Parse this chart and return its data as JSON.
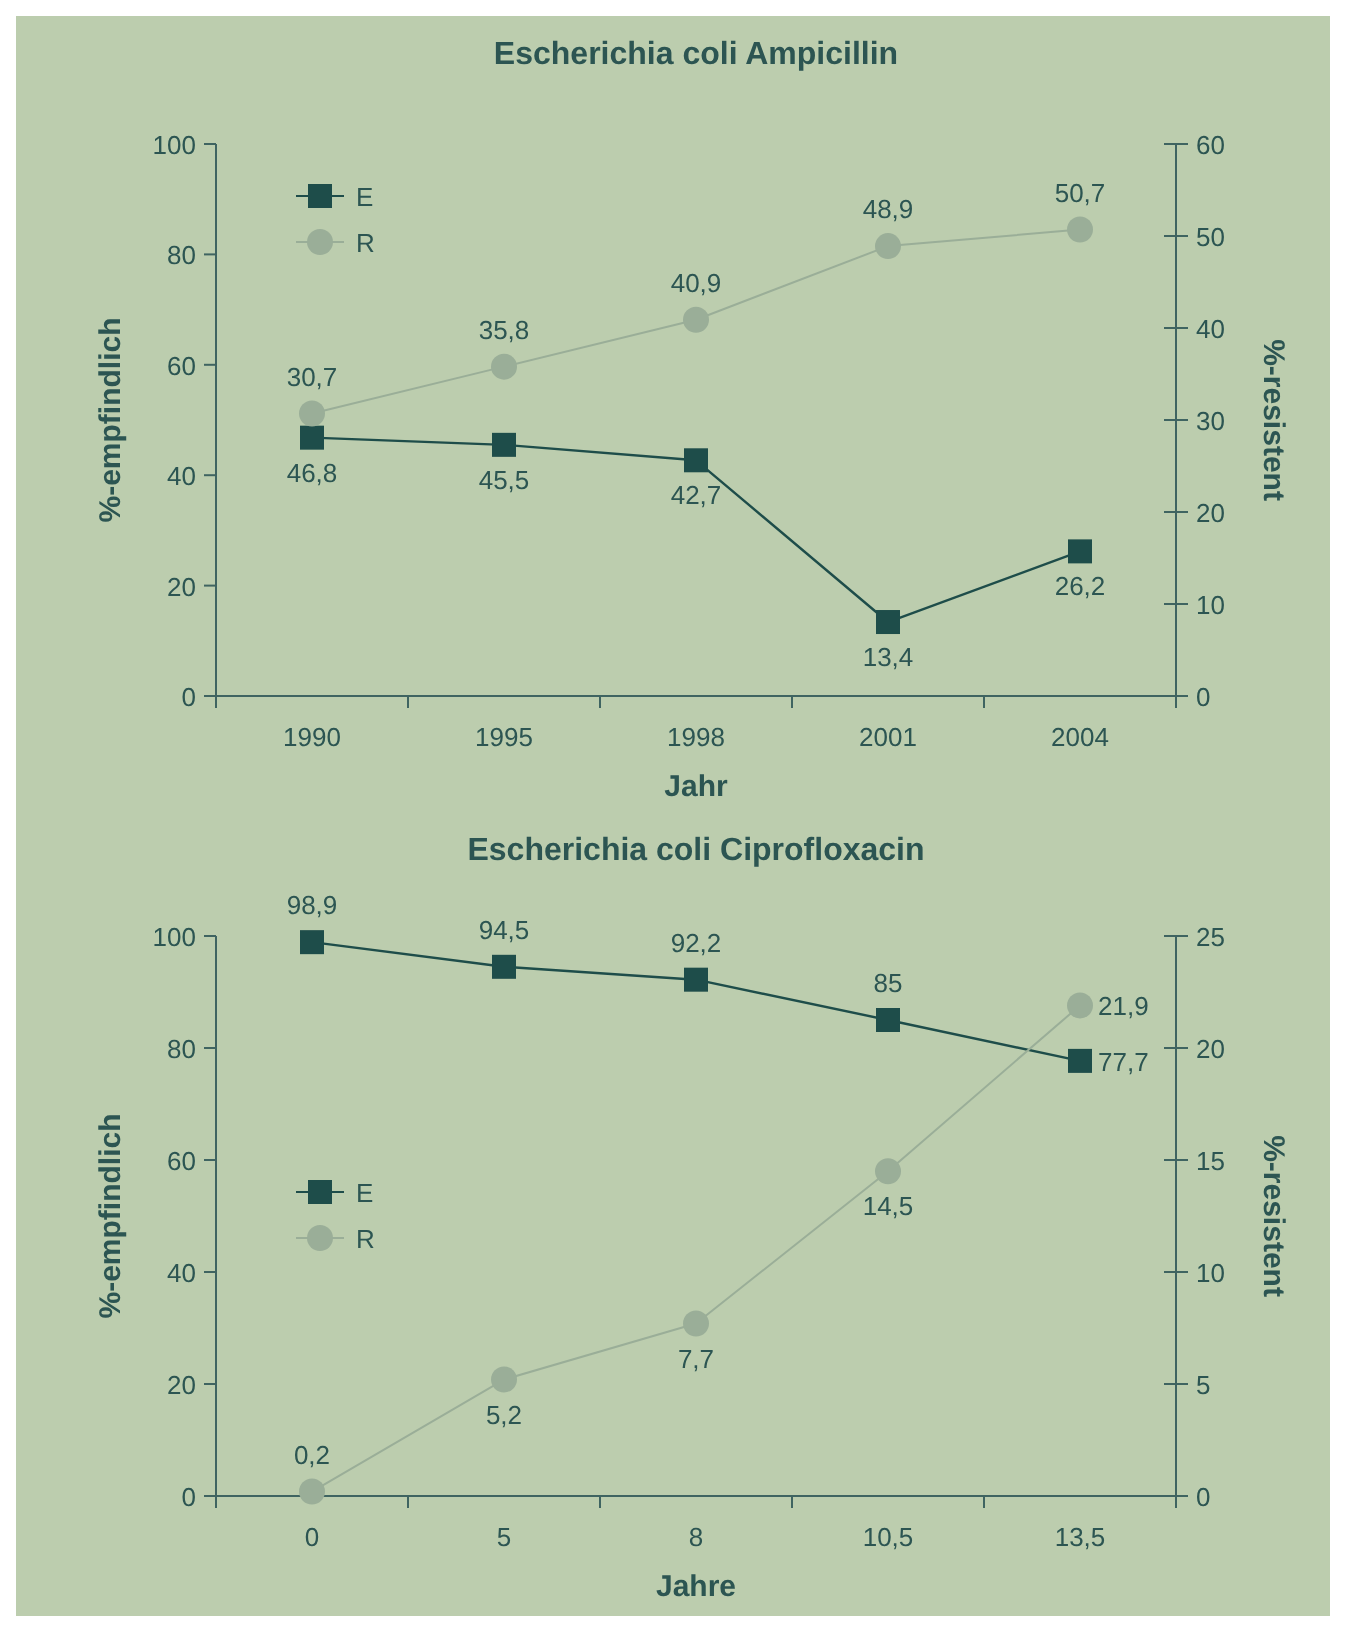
{
  "chart_data": [
    {
      "type": "line",
      "title": "Escherichia coli Ampicillin",
      "xlabel": "Jahr",
      "ylabel": "%-empfindlich",
      "y2label": "%-resistent",
      "categories": [
        "1990",
        "1995",
        "1998",
        "2001",
        "2004"
      ],
      "ylim": [
        0,
        100
      ],
      "yticks": [
        0,
        20,
        40,
        60,
        80,
        100
      ],
      "y2lim": [
        0,
        60
      ],
      "y2ticks": [
        0,
        10,
        20,
        30,
        40,
        50,
        60
      ],
      "legend": "top left",
      "grid": false,
      "series": [
        {
          "name": "E",
          "color": "#1e4d4a",
          "marker": "square",
          "values": [
            46.8,
            45.5,
            42.7,
            13.4,
            26.2
          ],
          "value_labels": [
            "46,8",
            "45,5",
            "42,7",
            "13,4",
            "26,2"
          ]
        },
        {
          "name": "R",
          "color": "#9aae98",
          "marker": "circle",
          "axis": "y2",
          "values": [
            30.7,
            35.8,
            40.9,
            48.9,
            50.7
          ],
          "value_labels": [
            "30,7",
            "35,8",
            "40,9",
            "48,9",
            "50,7"
          ]
        }
      ]
    },
    {
      "type": "line",
      "title": "Escherichia coli Ciprofloxacin",
      "xlabel": "Jahre",
      "ylabel": "%-empfindlich",
      "y2label": "%-resistent",
      "categories": [
        "0",
        "5",
        "8",
        "10,5",
        "13,5"
      ],
      "ylim": [
        0,
        100
      ],
      "yticks": [
        0,
        20,
        40,
        60,
        80,
        100
      ],
      "y2lim": [
        0,
        25
      ],
      "y2ticks": [
        0,
        5,
        10,
        15,
        20,
        25
      ],
      "legend": "left",
      "grid": false,
      "series": [
        {
          "name": "E",
          "color": "#1e4d4a",
          "marker": "square",
          "values": [
            98.9,
            94.5,
            92.2,
            85,
            77.7
          ],
          "value_labels": [
            "98,9",
            "94,5",
            "92,2",
            "85",
            "77,7"
          ]
        },
        {
          "name": "R",
          "color": "#9aae98",
          "marker": "circle",
          "axis": "y2",
          "values": [
            0.2,
            5.2,
            7.7,
            14.5,
            21.9
          ],
          "value_labels": [
            "0,2",
            "5,2",
            "7,7",
            "14,5",
            "21,9"
          ]
        }
      ]
    }
  ]
}
